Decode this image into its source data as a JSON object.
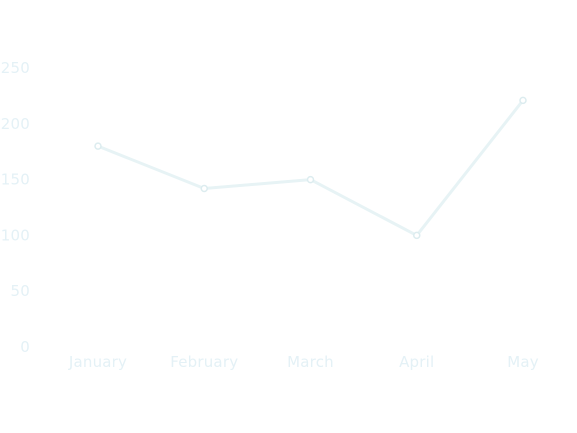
{
  "chart_data": {
    "type": "line",
    "title": "",
    "xlabel": "",
    "ylabel": "",
    "categories": [
      "January",
      "February",
      "March",
      "April",
      "May"
    ],
    "series": [
      {
        "values": [
          180,
          142,
          150,
          100,
          221
        ]
      }
    ],
    "ylim": [
      0,
      250
    ],
    "yticks": [
      "0",
      "50",
      "100",
      "150",
      "200",
      "250"
    ],
    "grid": false,
    "legend": "none"
  },
  "colors": {
    "line": "#e7f3f5",
    "point_fill": "#ffffff",
    "point_stroke": "#dcecef",
    "tick_text": "#e4f1f6"
  }
}
